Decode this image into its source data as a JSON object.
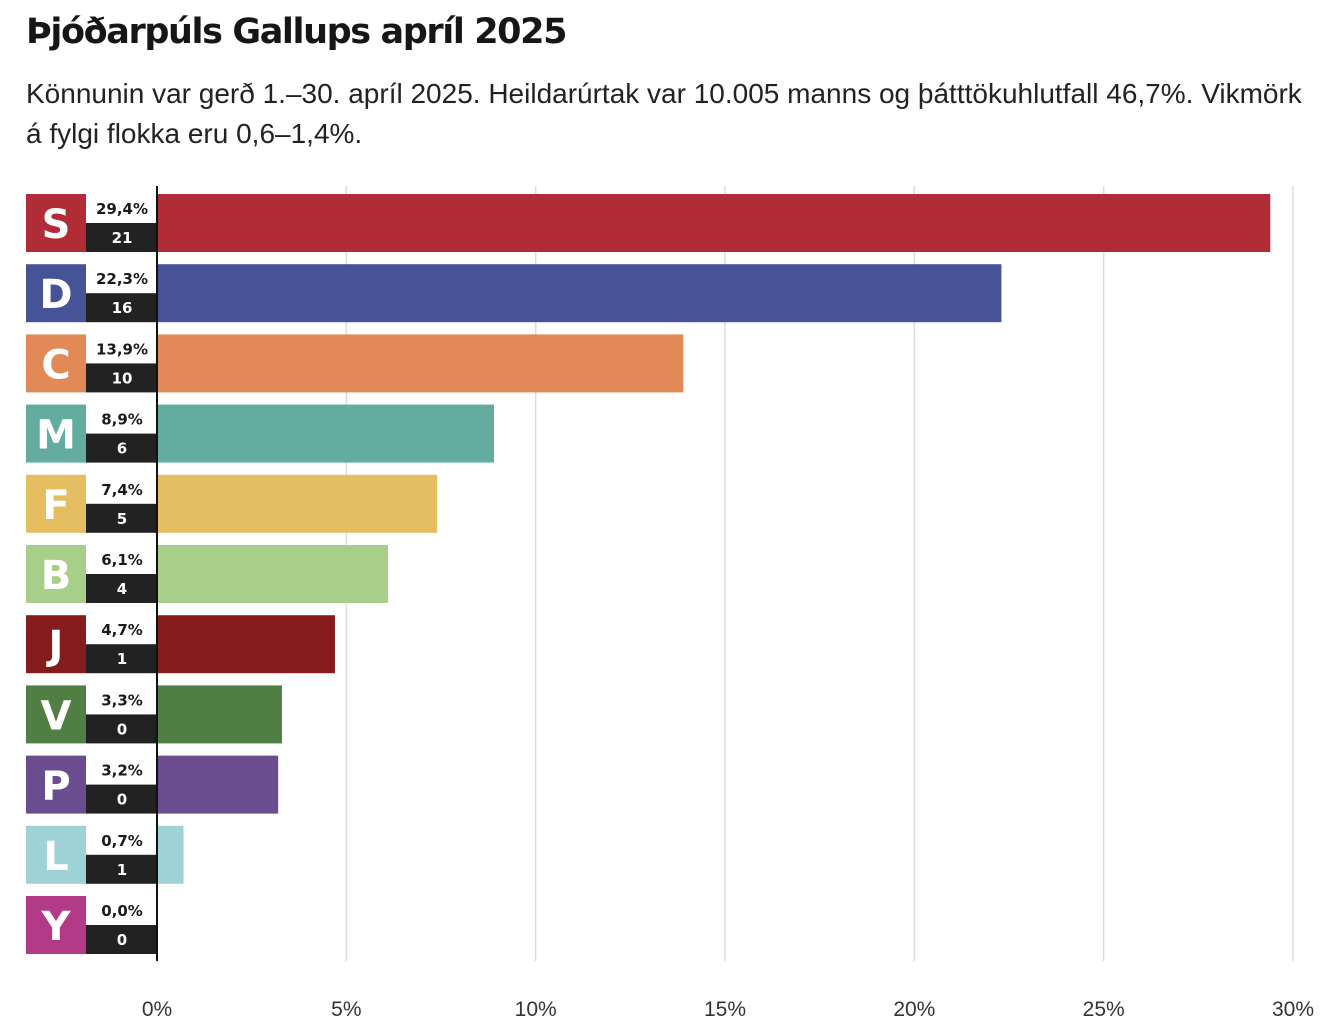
{
  "chart_data": {
    "type": "bar",
    "orientation": "horizontal",
    "title": "Þjóðarpúls Gallups apríl 2025",
    "subtitle": "Könnunin var gerð 1.–30. apríl 2025. Heildarúrtak var 10.005 manns og þátttökuhlutfall 46,7%. Vikmörk á fylgi flokka eru 0,6–1,4%.",
    "xlim": [
      0,
      30
    ],
    "ticks": [
      {
        "value": 0,
        "label": "0%"
      },
      {
        "value": 5,
        "label": "5%"
      },
      {
        "value": 10,
        "label": "10%"
      },
      {
        "value": 15,
        "label": "15%"
      },
      {
        "value": 20,
        "label": "20%"
      },
      {
        "value": 25,
        "label": "25%"
      },
      {
        "value": 30,
        "label": "30%"
      }
    ],
    "grid": true,
    "bars": [
      {
        "party": "S",
        "value": 29.4,
        "label": "29,4%",
        "seats": "21",
        "color": "#b02c37"
      },
      {
        "party": "D",
        "value": 22.3,
        "label": "22,3%",
        "seats": "16",
        "color": "#465497"
      },
      {
        "party": "C",
        "value": 13.9,
        "label": "13,9%",
        "seats": "10",
        "color": "#e18a58"
      },
      {
        "party": "M",
        "value": 8.9,
        "label": "8,9%",
        "seats": "6",
        "color": "#64ac9f"
      },
      {
        "party": "F",
        "value": 7.4,
        "label": "7,4%",
        "seats": "5",
        "color": "#e6be62"
      },
      {
        "party": "B",
        "value": 6.1,
        "label": "6,1%",
        "seats": "4",
        "color": "#a8cf8a"
      },
      {
        "party": "J",
        "value": 4.7,
        "label": "4,7%",
        "seats": "1",
        "color": "#851d1f"
      },
      {
        "party": "V",
        "value": 3.3,
        "label": "3,3%",
        "seats": "0",
        "color": "#517e43"
      },
      {
        "party": "P",
        "value": 3.2,
        "label": "3,2%",
        "seats": "0",
        "color": "#6a4d8f"
      },
      {
        "party": "L",
        "value": 0.7,
        "label": "0,7%",
        "seats": "1",
        "color": "#9ed2d6"
      },
      {
        "party": "Y",
        "value": 0.0,
        "label": "0,0%",
        "seats": "0",
        "color": "#b23a87"
      }
    ]
  }
}
